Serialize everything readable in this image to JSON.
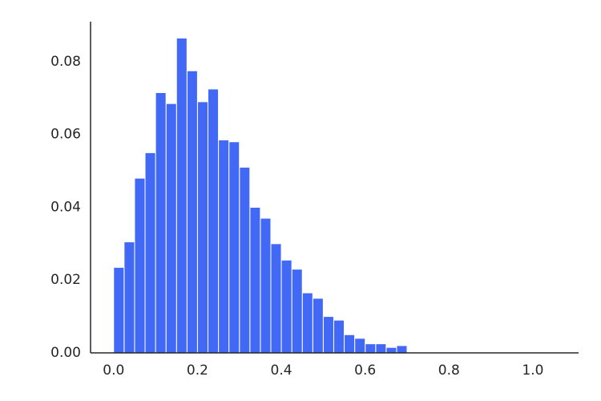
{
  "chart_data": {
    "type": "histogram",
    "bins": [
      0,
      0.025,
      0.05,
      0.075,
      0.1,
      0.125,
      0.15,
      0.175,
      0.2,
      0.225,
      0.25,
      0.275,
      0.3,
      0.325,
      0.35,
      0.375,
      0.4,
      0.425,
      0.45,
      0.475,
      0.5,
      0.525,
      0.55,
      0.575,
      0.6,
      0.625,
      0.65,
      0.675,
      0.7
    ],
    "values": [
      0.0235,
      0.0305,
      0.048,
      0.055,
      0.0715,
      0.0685,
      0.0865,
      0.0775,
      0.069,
      0.0725,
      0.0585,
      0.058,
      0.051,
      0.04,
      0.037,
      0.03,
      0.0255,
      0.023,
      0.0165,
      0.015,
      0.01,
      0.009,
      0.005,
      0.004,
      0.0025,
      0.0025,
      0.0015,
      0.002
    ],
    "color": "#4169f5",
    "xlim": [
      -0.055,
      1.109
    ],
    "ylim": [
      0,
      0.091
    ],
    "xticks": [
      {
        "value": 0,
        "label": "0.0"
      },
      0.2,
      0.4,
      0.6,
      0.8,
      {
        "value": 1,
        "label": "1.0"
      }
    ],
    "yticks": [
      {
        "value": 0,
        "label": "0.00"
      },
      {
        "value": 0.02,
        "label": "0.02"
      },
      {
        "value": 0.04,
        "label": "0.04"
      },
      {
        "value": 0.06,
        "label": "0.06"
      },
      {
        "value": 0.08,
        "label": "0.08"
      }
    ],
    "grid": false
  }
}
